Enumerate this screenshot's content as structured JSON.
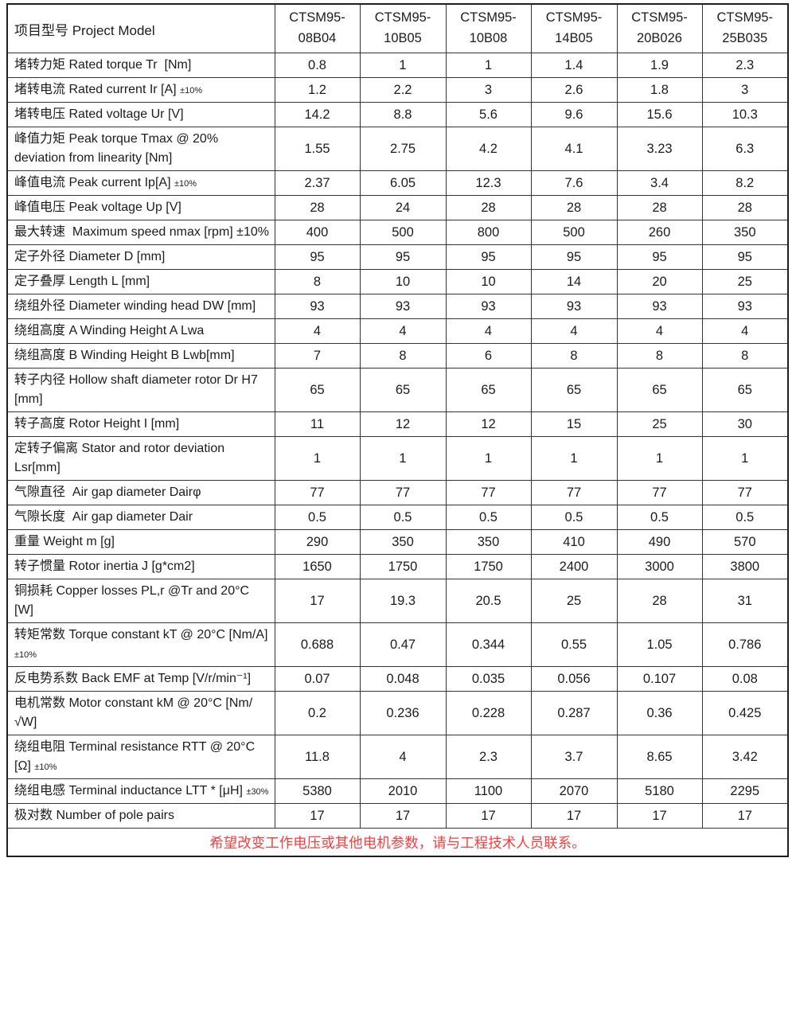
{
  "table": {
    "header": {
      "label": "项目型号 Project Model",
      "models": [
        "CTSM95-08B04",
        "CTSM95-10B05",
        "CTSM95-10B08",
        "CTSM95-14B05",
        "CTSM95-20B026",
        "CTSM95-25B035"
      ]
    },
    "rows": [
      {
        "label": "堵转力矩 Rated torque Tr  [Nm]",
        "note": "",
        "values": [
          "0.8",
          "1",
          "1",
          "1.4",
          "1.9",
          "2.3"
        ]
      },
      {
        "label": "堵转电流 Rated current Ir [A]",
        "note": "±10%",
        "values": [
          "1.2",
          "2.2",
          "3",
          "2.6",
          "1.8",
          "3"
        ]
      },
      {
        "label": "堵转电压 Rated voltage Ur [V]",
        "note": "",
        "values": [
          "14.2",
          "8.8",
          "5.6",
          "9.6",
          "15.6",
          "10.3"
        ]
      },
      {
        "label": "峰值力矩 Peak torque Tmax @ 20% deviation from linearity [Nm]",
        "note": "",
        "values": [
          "1.55",
          "2.75",
          "4.2",
          "4.1",
          "3.23",
          "6.3"
        ]
      },
      {
        "label": "峰值电流 Peak current Ip[A]",
        "note": "±10%",
        "values": [
          "2.37",
          "6.05",
          "12.3",
          "7.6",
          "3.4",
          "8.2"
        ]
      },
      {
        "label": "峰值电压 Peak voltage Up [V]",
        "note": "",
        "values": [
          "28",
          "24",
          "28",
          "28",
          "28",
          "28"
        ]
      },
      {
        "label": "最大转速  Maximum speed nmax [rpm] ±10%",
        "note": "",
        "values": [
          "400",
          "500",
          "800",
          "500",
          "260",
          "350"
        ]
      },
      {
        "label": "定子外径 Diameter D [mm]",
        "note": "",
        "values": [
          "95",
          "95",
          "95",
          "95",
          "95",
          "95"
        ]
      },
      {
        "label": "定子叠厚 Length L [mm]",
        "note": "",
        "values": [
          "8",
          "10",
          "10",
          "14",
          "20",
          "25"
        ]
      },
      {
        "label": "绕组外径 Diameter winding head DW [mm]",
        "note": "",
        "values": [
          "93",
          "93",
          "93",
          "93",
          "93",
          "93"
        ]
      },
      {
        "label": "绕组高度 A Winding Height A Lwa",
        "note": "",
        "values": [
          "4",
          "4",
          "4",
          "4",
          "4",
          "4"
        ]
      },
      {
        "label": "绕组高度 B Winding Height B Lwb[mm]",
        "note": "",
        "values": [
          "7",
          "8",
          "6",
          "8",
          "8",
          "8"
        ]
      },
      {
        "label": "转子内径 Hollow shaft diameter rotor Dr H7 [mm]",
        "note": "",
        "values": [
          "65",
          "65",
          "65",
          "65",
          "65",
          "65"
        ]
      },
      {
        "label": "转子高度 Rotor Height I [mm]",
        "note": "",
        "values": [
          "11",
          "12",
          "12",
          "15",
          "25",
          "30"
        ]
      },
      {
        "label": "定转子偏离 Stator and rotor deviation Lsr[mm]",
        "note": "",
        "values": [
          "1",
          "1",
          "1",
          "1",
          "1",
          "1"
        ]
      },
      {
        "label": "气隙直径  Air gap diameter Dairφ",
        "note": "",
        "values": [
          "77",
          "77",
          "77",
          "77",
          "77",
          "77"
        ]
      },
      {
        "label": "气隙长度  Air gap diameter Dair",
        "note": "",
        "values": [
          "0.5",
          "0.5",
          "0.5",
          "0.5",
          "0.5",
          "0.5"
        ]
      },
      {
        "label": "重量 Weight m [g]",
        "note": "",
        "values": [
          "290",
          "350",
          "350",
          "410",
          "490",
          "570"
        ]
      },
      {
        "label": "转子惯量 Rotor inertia J [g*cm2]",
        "note": "",
        "values": [
          "1650",
          "1750",
          "1750",
          "2400",
          "3000",
          "3800"
        ]
      },
      {
        "label": "铜损耗 Copper losses PL,r @Tr and 20°C [W]",
        "note": "",
        "values": [
          "17",
          "19.3",
          "20.5",
          "25",
          "28",
          "31"
        ]
      },
      {
        "label": "转矩常数 Torque constant kT @ 20°C [Nm/A]",
        "note": "±10%",
        "values": [
          "0.688",
          "0.47",
          "0.344",
          "0.55",
          "1.05",
          "0.786"
        ]
      },
      {
        "label": "反电势系数 Back EMF at Temp [V/r/min⁻¹]",
        "note": "",
        "values": [
          "0.07",
          "0.048",
          "0.035",
          "0.056",
          "0.107",
          "0.08"
        ]
      },
      {
        "label": "电机常数 Motor constant kM @ 20°C [Nm/ √W]",
        "note": "",
        "values": [
          "0.2",
          "0.236",
          "0.228",
          "0.287",
          "0.36",
          "0.425"
        ]
      },
      {
        "label": "绕组电阻 Terminal resistance RTT @ 20°C [Ω]",
        "note": "±10%",
        "values": [
          "11.8",
          "4",
          "2.3",
          "3.7",
          "8.65",
          "3.42"
        ]
      },
      {
        "label": "绕组电感 Terminal inductance LTT * [μH]",
        "note": "±30%",
        "values": [
          "5380",
          "2010",
          "1100",
          "2070",
          "5180",
          "2295"
        ]
      },
      {
        "label": "极对数 Number of pole pairs",
        "note": "",
        "values": [
          "17",
          "17",
          "17",
          "17",
          "17",
          "17"
        ]
      }
    ],
    "footer": {
      "text": "希望改变工作电压或其他电机参数，请与工程技术人员联系。"
    }
  },
  "colors": {
    "footer_text": "#f83e3e",
    "border": "#343434",
    "text": "#1c1c1c"
  }
}
